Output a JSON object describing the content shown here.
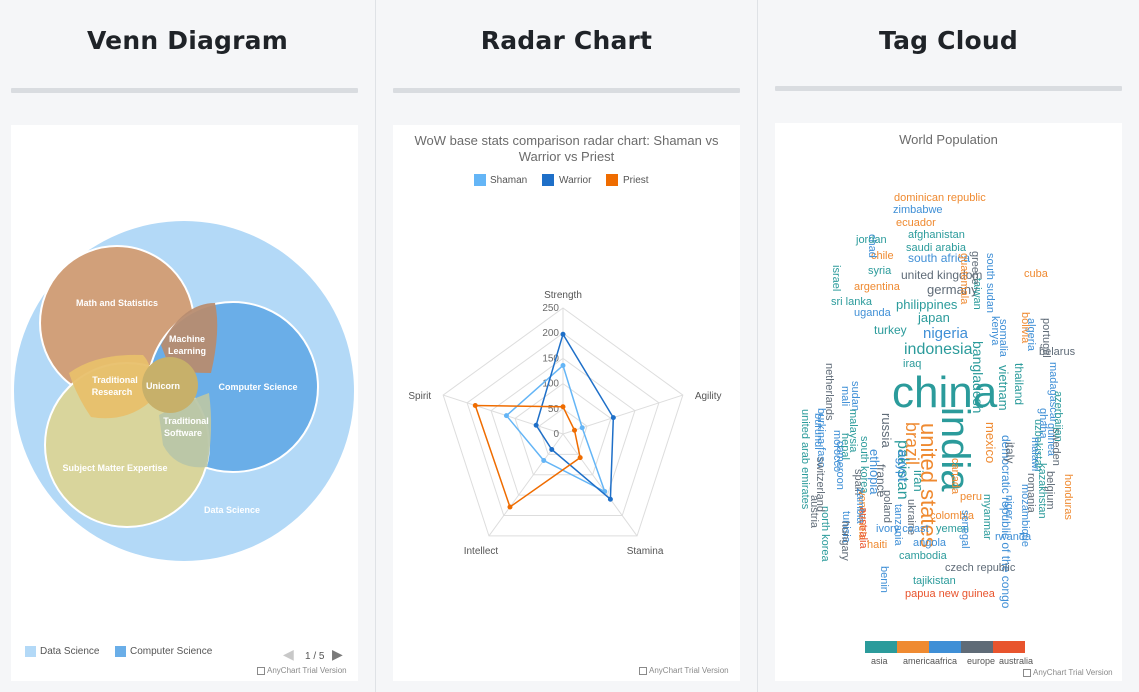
{
  "columns": {
    "venn_title": "Venn Diagram",
    "radar_title": "Radar Chart",
    "tag_title": "Tag Cloud"
  },
  "venn": {
    "sets": {
      "data_science": "Data Science",
      "math": "Math and Statistics",
      "computer_science": "Computer Science",
      "subject_matter": "Subject Matter Expertise",
      "machine_learning_1": "Machine",
      "machine_learning_2": "Learning",
      "traditional_research_1": "Traditional",
      "traditional_research_2": "Research",
      "traditional_software_1": "Traditional",
      "traditional_software_2": "Software",
      "unicorn": "Unicorn"
    },
    "legend": [
      "Data Science",
      "Computer Science"
    ],
    "legend_colors": [
      "#b3d9f7",
      "#6aaee8"
    ],
    "pager": "1 / 5",
    "colors": {
      "data_science": "#b3d9f7",
      "math": "#d1a07a",
      "computer_science": "#6aaee8",
      "subject_matter": "#d9d59c",
      "traditional_research": "#e8c06b",
      "machine_learning": "#b78c70",
      "traditional_software": "#b9c6a8",
      "unicorn": "#c7b06a"
    }
  },
  "trial_text": "AnyChart Trial Version",
  "chart_data": [
    {
      "type": "radar",
      "title": "WoW base stats comparison radar chart: Shaman vs Warrior vs Priest",
      "categories": [
        "Strength",
        "Agility",
        "Stamina",
        "Intellect",
        "Spirit"
      ],
      "ylim": [
        0,
        250
      ],
      "ticks": [
        "250",
        "200",
        "150",
        "100",
        "50",
        "0"
      ],
      "series": [
        {
          "name": "Shaman",
          "color": "#64b5f6",
          "values": [
            136,
            40,
            141,
            65,
            118
          ]
        },
        {
          "name": "Warrior",
          "color": "#1e6fc8",
          "values": [
            198,
            105,
            160,
            38,
            56
          ]
        },
        {
          "name": "Priest",
          "color": "#ef6c00",
          "values": [
            54,
            24,
            58,
            179,
            183
          ]
        }
      ]
    },
    {
      "type": "tag-cloud",
      "title": "World Population",
      "categories": [
        "asia",
        "america",
        "africa",
        "europe",
        "australia"
      ],
      "category_colors": [
        "#2b9b9b",
        "#ef8a31",
        "#3f8fd6",
        "#5f6b77",
        "#e8542d"
      ]
    }
  ],
  "tags": [
    {
      "t": "china",
      "c": 0
    },
    {
      "t": "india",
      "c": 0
    },
    {
      "t": "united states",
      "c": 1
    },
    {
      "t": "indonesia",
      "c": 0
    },
    {
      "t": "brazil",
      "c": 1
    },
    {
      "t": "pakistan",
      "c": 0
    },
    {
      "t": "nigeria",
      "c": 2
    },
    {
      "t": "bangladesh",
      "c": 0
    },
    {
      "t": "russia",
      "c": 3
    },
    {
      "t": "japan",
      "c": 0
    },
    {
      "t": "mexico",
      "c": 1
    },
    {
      "t": "philippines",
      "c": 0
    },
    {
      "t": "ethiopia",
      "c": 2
    },
    {
      "t": "vietnam",
      "c": 0
    },
    {
      "t": "egypt",
      "c": 2
    },
    {
      "t": "germany",
      "c": 3
    },
    {
      "t": "iran",
      "c": 0
    },
    {
      "t": "turkey",
      "c": 0
    },
    {
      "t": "democratic republic of the congo",
      "c": 2
    },
    {
      "t": "thailand",
      "c": 0
    },
    {
      "t": "france",
      "c": 3
    },
    {
      "t": "united kingdom",
      "c": 3
    },
    {
      "t": "italy",
      "c": 3
    },
    {
      "t": "south africa",
      "c": 2
    },
    {
      "t": "myanmar",
      "c": 0
    },
    {
      "t": "tanzania",
      "c": 2
    },
    {
      "t": "south korea",
      "c": 0
    },
    {
      "t": "colombia",
      "c": 1
    },
    {
      "t": "kenya",
      "c": 2
    },
    {
      "t": "spain",
      "c": 3
    },
    {
      "t": "argentina",
      "c": 1
    },
    {
      "t": "ukraine",
      "c": 3
    },
    {
      "t": "uganda",
      "c": 2
    },
    {
      "t": "algeria",
      "c": 2
    },
    {
      "t": "sudan",
      "c": 2
    },
    {
      "t": "iraq",
      "c": 0
    },
    {
      "t": "poland",
      "c": 3
    },
    {
      "t": "canada",
      "c": 1
    },
    {
      "t": "morocco",
      "c": 2
    },
    {
      "t": "afghanistan",
      "c": 0
    },
    {
      "t": "saudi arabia",
      "c": 0
    },
    {
      "t": "peru",
      "c": 1
    },
    {
      "t": "venezuela",
      "c": 1
    },
    {
      "t": "uzbekistan",
      "c": 0
    },
    {
      "t": "malaysia",
      "c": 0
    },
    {
      "t": "mozambique",
      "c": 2
    },
    {
      "t": "nepal",
      "c": 0
    },
    {
      "t": "ghana",
      "c": 2
    },
    {
      "t": "yemen",
      "c": 0
    },
    {
      "t": "angola",
      "c": 2
    },
    {
      "t": "north korea",
      "c": 0
    },
    {
      "t": "madagascar",
      "c": 2
    },
    {
      "t": "australia",
      "c": 4
    },
    {
      "t": "cameroon",
      "c": 2
    },
    {
      "t": "taiwan",
      "c": 0
    },
    {
      "t": "ivory coast",
      "c": 2
    },
    {
      "t": "sri lanka",
      "c": 0
    },
    {
      "t": "romania",
      "c": 3
    },
    {
      "t": "niger",
      "c": 2
    },
    {
      "t": "burkina faso",
      "c": 2
    },
    {
      "t": "syria",
      "c": 0
    },
    {
      "t": "mali",
      "c": 2
    },
    {
      "t": "chile",
      "c": 1
    },
    {
      "t": "kazakhstan",
      "c": 0
    },
    {
      "t": "malawi",
      "c": 2
    },
    {
      "t": "netherlands",
      "c": 3
    },
    {
      "t": "zambia",
      "c": 2
    },
    {
      "t": "guatemala",
      "c": 1
    },
    {
      "t": "ecuador",
      "c": 1
    },
    {
      "t": "zimbabwe",
      "c": 2
    },
    {
      "t": "cambodia",
      "c": 0
    },
    {
      "t": "senegal",
      "c": 2
    },
    {
      "t": "chad",
      "c": 2
    },
    {
      "t": "somalia",
      "c": 2
    },
    {
      "t": "guinea",
      "c": 2
    },
    {
      "t": "south sudan",
      "c": 2
    },
    {
      "t": "rwanda",
      "c": 2
    },
    {
      "t": "tunisia",
      "c": 2
    },
    {
      "t": "belgium",
      "c": 3
    },
    {
      "t": "cuba",
      "c": 1
    },
    {
      "t": "benin",
      "c": 2
    },
    {
      "t": "burundi",
      "c": 2
    },
    {
      "t": "bolivia",
      "c": 1
    },
    {
      "t": "greece",
      "c": 3
    },
    {
      "t": "haiti",
      "c": 1
    },
    {
      "t": "dominican republic",
      "c": 1
    },
    {
      "t": "czech republic",
      "c": 3
    },
    {
      "t": "portugal",
      "c": 3
    },
    {
      "t": "jordan",
      "c": 0
    },
    {
      "t": "sweden",
      "c": 3
    },
    {
      "t": "azerbaijan",
      "c": 0
    },
    {
      "t": "united arab emirates",
      "c": 0
    },
    {
      "t": "hungary",
      "c": 3
    },
    {
      "t": "honduras",
      "c": 1
    },
    {
      "t": "belarus",
      "c": 3
    },
    {
      "t": "tajikistan",
      "c": 0
    },
    {
      "t": "austria",
      "c": 3
    },
    {
      "t": "israel",
      "c": 0
    },
    {
      "t": "switzerland",
      "c": 3
    },
    {
      "t": "papua new guinea",
      "c": 4
    }
  ]
}
